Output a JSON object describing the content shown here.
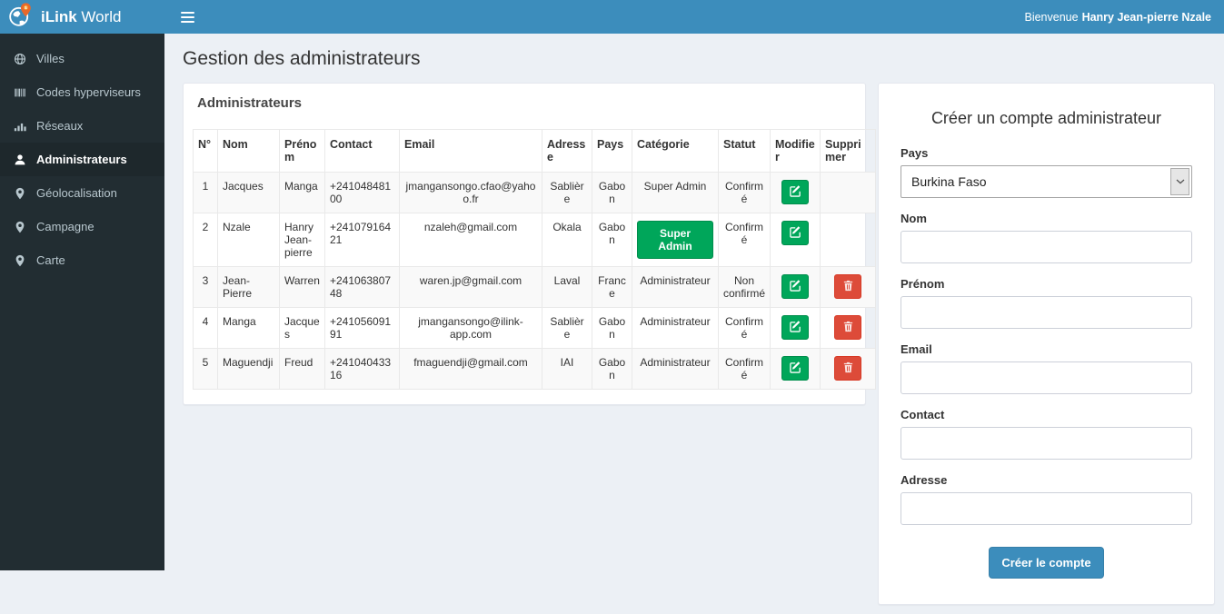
{
  "brand": {
    "bold": "iLink",
    "rest": "World"
  },
  "header": {
    "welcome_prefix": "Bienvenue",
    "welcome_name": "Hanry Jean-pierre Nzale",
    "menu_icon": "hamburger-icon",
    "logo_icon": "globe-pin-logo"
  },
  "sidebar": {
    "items": [
      {
        "label": "Villes",
        "icon": "globe-icon",
        "active": false
      },
      {
        "label": "Codes hyperviseurs",
        "icon": "barcode-icon",
        "active": false
      },
      {
        "label": "Réseaux",
        "icon": "signal-bars-icon",
        "active": false
      },
      {
        "label": "Administrateurs",
        "icon": "user-icon",
        "active": true
      },
      {
        "label": "Géolocalisation",
        "icon": "map-marker-icon",
        "active": false
      },
      {
        "label": "Campagne",
        "icon": "map-marker-icon",
        "active": false
      },
      {
        "label": "Carte",
        "icon": "map-marker-icon",
        "active": false
      }
    ]
  },
  "page": {
    "title": "Gestion des administrateurs"
  },
  "admin_panel": {
    "title": "Administrateurs",
    "columns": [
      "N°",
      "Nom",
      "Prénom",
      "Contact",
      "Email",
      "Adresse",
      "Pays",
      "Catégorie",
      "Statut",
      "Modifier",
      "Supprimer"
    ],
    "rows": [
      {
        "n": "1",
        "nom": "Jacques",
        "prenom": "Manga",
        "contact": "+24104848100",
        "email": "jmangansongo.cfao@yahoo.fr",
        "adresse": "Sablière",
        "pays": "Gabon",
        "categorie": "Super Admin",
        "categorie_as_button": false,
        "statut": "Confirmé",
        "can_delete": false
      },
      {
        "n": "2",
        "nom": "Nzale",
        "prenom": "Hanry Jean-pierre",
        "contact": "+24107916421",
        "email": "nzaleh@gmail.com",
        "adresse": "Okala",
        "pays": "Gabon",
        "categorie": "Super Admin",
        "categorie_as_button": true,
        "statut": "Confirmé",
        "can_delete": false
      },
      {
        "n": "3",
        "nom": "Jean-Pierre",
        "prenom": "Warren",
        "contact": "+24106380748",
        "email": "waren.jp@gmail.com",
        "adresse": "Laval",
        "pays": "France",
        "categorie": "Administrateur",
        "categorie_as_button": false,
        "statut": "Non confirmé",
        "can_delete": true
      },
      {
        "n": "4",
        "nom": "Manga",
        "prenom": "Jacques",
        "contact": "+24105609191",
        "email": "jmangansongo@ilink-app.com",
        "adresse": "Sablière",
        "pays": "Gabon",
        "categorie": "Administrateur",
        "categorie_as_button": false,
        "statut": "Confirmé",
        "can_delete": true
      },
      {
        "n": "5",
        "nom": "Maguendji",
        "prenom": "Freud",
        "contact": "+24104043316",
        "email": "fmaguendji@gmail.com",
        "adresse": "IAI",
        "pays": "Gabon",
        "categorie": "Administrateur",
        "categorie_as_button": false,
        "statut": "Confirmé",
        "can_delete": true
      }
    ],
    "edit_icon": "edit-icon",
    "delete_icon": "trash-icon"
  },
  "form": {
    "title": "Créer un compte administrateur",
    "fields": [
      {
        "label": "Pays",
        "type": "select",
        "value": "Burkina Faso",
        "name": "pays"
      },
      {
        "label": "Nom",
        "type": "text",
        "value": "",
        "placeholder": "",
        "name": "nom"
      },
      {
        "label": "Prénom",
        "type": "text",
        "value": "",
        "placeholder": "",
        "name": "prenom"
      },
      {
        "label": "Email",
        "type": "text",
        "value": "",
        "placeholder": "",
        "name": "email"
      },
      {
        "label": "Contact",
        "type": "text",
        "value": "",
        "placeholder": "",
        "name": "contact"
      },
      {
        "label": "Adresse",
        "type": "text",
        "value": "",
        "placeholder": "",
        "name": "adresse"
      }
    ],
    "submit_label": "Créer le compte"
  },
  "colors": {
    "header_blue": "#3c8dbc",
    "sidebar_dark": "#222d32",
    "sidebar_active": "#1e282c",
    "content_bg": "#ecf0f5",
    "green": "#00a65a",
    "red": "#dd4b39",
    "primary": "#3c8dbc",
    "stripe": "#f9f9f9"
  }
}
